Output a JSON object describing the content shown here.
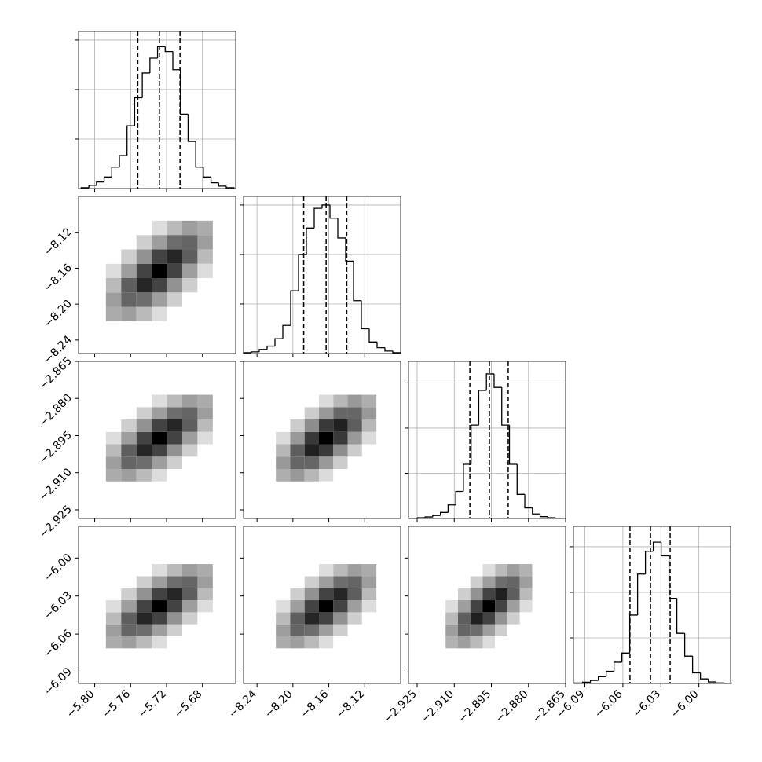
{
  "chart_data": {
    "type": "corner",
    "params": [
      {
        "lim": [
          -5.818,
          -5.643
        ],
        "ticks": [
          {
            "value": -5.8,
            "label": "−5.80"
          },
          {
            "value": -5.76,
            "label": "−5.76"
          },
          {
            "value": -5.72,
            "label": "−5.72"
          },
          {
            "value": -5.68,
            "label": "−5.68"
          }
        ],
        "bins": [
          -5.815,
          -5.8065,
          -5.798,
          -5.7895,
          -5.781,
          -5.7725,
          -5.764,
          -5.7555,
          -5.747,
          -5.7385,
          -5.73,
          -5.7215,
          -5.713,
          -5.7045,
          -5.696,
          -5.6875,
          -5.679,
          -5.6705,
          -5.662,
          -5.6535,
          -5.645
        ],
        "counts": [
          5,
          20,
          40,
          70,
          130,
          200,
          380,
          550,
          700,
          790,
          860,
          830,
          720,
          450,
          285,
          130,
          70,
          35,
          15,
          5
        ],
        "hist_ylim": [
          0,
          952
        ],
        "hist_yticks": [
          300,
          600,
          900
        ],
        "quantiles": [
          -5.752,
          -5.728,
          -5.705
        ],
        "grid_edges": [
          -5.7875,
          -5.7705,
          -5.7535,
          -5.7365,
          -5.7195,
          -5.7025,
          -5.6855,
          -5.6685
        ]
      },
      {
        "lim": [
          -8.255,
          -8.08
        ],
        "ticks": [
          {
            "value": -8.24,
            "label": "−8.24"
          },
          {
            "value": -8.2,
            "label": "−8.20"
          },
          {
            "value": -8.16,
            "label": "−8.16"
          },
          {
            "value": -8.12,
            "label": "−8.12"
          }
        ],
        "bins": [
          -8.255,
          -8.24625,
          -8.2375,
          -8.22875,
          -8.22,
          -8.21125,
          -8.2025,
          -8.19375,
          -8.185,
          -8.17625,
          -8.1675,
          -8.15875,
          -8.15,
          -8.14125,
          -8.1325,
          -8.12375,
          -8.115,
          -8.10625,
          -8.0975,
          -8.08875,
          -8.08
        ],
        "counts": [
          5,
          10,
          25,
          45,
          90,
          170,
          380,
          600,
          760,
          880,
          900,
          820,
          700,
          560,
          320,
          150,
          70,
          35,
          15,
          5
        ],
        "hist_ylim": [
          0,
          952
        ],
        "hist_yticks": [
          300,
          600,
          900
        ],
        "quantiles": [
          -8.188,
          -8.163,
          -8.14
        ],
        "grid_edges": [
          -8.219,
          -8.203,
          -8.187,
          -8.171,
          -8.155,
          -8.139,
          -8.123,
          -8.107
        ]
      },
      {
        "lim": [
          -2.9285,
          -2.865
        ],
        "ticks": [
          {
            "value": -2.925,
            "label": "−2.925"
          },
          {
            "value": -2.91,
            "label": "−2.910"
          },
          {
            "value": -2.895,
            "label": "−2.895"
          },
          {
            "value": -2.88,
            "label": "−2.880"
          },
          {
            "value": -2.865,
            "label": "−2.865"
          }
        ],
        "bins": [
          -2.928,
          -2.9249,
          -2.9218,
          -2.9187,
          -2.9156,
          -2.9125,
          -2.9094,
          -2.9063,
          -2.9032,
          -2.9001,
          -2.897,
          -2.8939,
          -2.8908,
          -2.8877,
          -2.8846,
          -2.8815,
          -2.8784,
          -2.8753,
          -2.8722,
          -2.8691,
          -2.866
        ],
        "counts": [
          2,
          5,
          10,
          20,
          40,
          90,
          180,
          360,
          620,
          850,
          960,
          870,
          620,
          360,
          160,
          70,
          30,
          12,
          5,
          2
        ],
        "hist_ylim": [
          0,
          1043
        ],
        "hist_yticks": [
          300,
          600,
          900
        ],
        "quantiles": [
          -2.9037,
          -2.8958,
          -2.8882
        ],
        "grid_edges": [
          -2.9135,
          -2.9085,
          -2.9035,
          -2.8985,
          -2.8935,
          -2.8885,
          -2.8835,
          -2.8785
        ]
      },
      {
        "lim": [
          -6.099,
          -5.975
        ],
        "ticks": [
          {
            "value": -6.09,
            "label": "−6.09"
          },
          {
            "value": -6.06,
            "label": "−6.06"
          },
          {
            "value": -6.03,
            "label": "−6.03"
          },
          {
            "value": -6.0,
            "label": "−6.00"
          }
        ],
        "bins": [
          -6.098,
          -6.0918,
          -6.0856,
          -6.0794,
          -6.0732,
          -6.067,
          -6.0608,
          -6.0546,
          -6.0484,
          -6.0422,
          -6.036,
          -6.0298,
          -6.0236,
          -6.0174,
          -6.0112,
          -6.005,
          -5.9988,
          -5.9926,
          -5.9864,
          -5.9802,
          -5.974
        ],
        "counts": [
          3,
          8,
          20,
          45,
          80,
          140,
          200,
          450,
          720,
          870,
          930,
          840,
          560,
          330,
          180,
          70,
          30,
          10,
          4,
          2
        ],
        "hist_ylim": [
          0,
          1034
        ],
        "hist_yticks": [
          300,
          600,
          900
        ],
        "quantiles": [
          -6.0544,
          -6.0382,
          -6.0227
        ],
        "grid_edges": [
          -6.0713,
          -6.0618,
          -6.0523,
          -6.0428,
          -6.0333,
          -6.0238,
          -6.0143,
          -6.0048
        ]
      }
    ],
    "density": [
      [
        [
          [
            6,
            8,
            4,
            1,
            0,
            0,
            0
          ],
          [
            8,
            20,
            18,
            8,
            2,
            0,
            0
          ],
          [
            4,
            22,
            40,
            30,
            10,
            2,
            0
          ],
          [
            1,
            8,
            30,
            55,
            30,
            8,
            1
          ],
          [
            0,
            2,
            10,
            30,
            40,
            22,
            4
          ],
          [
            0,
            0,
            2,
            8,
            18,
            20,
            8
          ],
          [
            0,
            0,
            0,
            1,
            4,
            8,
            6
          ]
        ]
      ],
      [
        [
          [
            6,
            8,
            4,
            1,
            0,
            0,
            0
          ],
          [
            8,
            20,
            18,
            8,
            2,
            0,
            0
          ],
          [
            4,
            22,
            40,
            30,
            10,
            2,
            0
          ],
          [
            1,
            8,
            30,
            55,
            30,
            8,
            1
          ],
          [
            0,
            2,
            10,
            30,
            40,
            22,
            4
          ],
          [
            0,
            0,
            2,
            8,
            18,
            20,
            8
          ],
          [
            0,
            0,
            0,
            1,
            4,
            8,
            6
          ]
        ],
        [
          [
            5,
            8,
            4,
            1,
            0,
            0,
            0
          ],
          [
            8,
            18,
            18,
            8,
            2,
            0,
            0
          ],
          [
            4,
            20,
            38,
            30,
            10,
            2,
            0
          ],
          [
            1,
            8,
            30,
            50,
            30,
            8,
            1
          ],
          [
            0,
            2,
            10,
            30,
            38,
            20,
            4
          ],
          [
            0,
            0,
            2,
            8,
            18,
            18,
            8
          ],
          [
            0,
            0,
            0,
            1,
            4,
            8,
            5
          ]
        ]
      ],
      [
        [
          [
            6,
            8,
            4,
            1,
            0,
            0,
            0
          ],
          [
            8,
            20,
            18,
            8,
            2,
            0,
            0
          ],
          [
            4,
            22,
            40,
            30,
            10,
            2,
            0
          ],
          [
            1,
            8,
            30,
            55,
            30,
            8,
            1
          ],
          [
            0,
            2,
            10,
            30,
            40,
            22,
            4
          ],
          [
            0,
            0,
            2,
            8,
            18,
            20,
            8
          ],
          [
            0,
            0,
            0,
            1,
            4,
            8,
            6
          ]
        ],
        [
          [
            6,
            8,
            4,
            1,
            0,
            0,
            0
          ],
          [
            8,
            20,
            18,
            8,
            2,
            0,
            0
          ],
          [
            4,
            22,
            40,
            30,
            10,
            2,
            0
          ],
          [
            1,
            8,
            30,
            55,
            30,
            8,
            1
          ],
          [
            0,
            2,
            10,
            30,
            40,
            22,
            4
          ],
          [
            0,
            0,
            2,
            8,
            18,
            20,
            8
          ],
          [
            0,
            0,
            0,
            1,
            4,
            8,
            6
          ]
        ],
        [
          [
            5,
            8,
            4,
            1,
            0,
            0,
            0
          ],
          [
            8,
            20,
            18,
            8,
            2,
            0,
            0
          ],
          [
            4,
            22,
            42,
            30,
            10,
            2,
            0
          ],
          [
            1,
            8,
            30,
            55,
            30,
            8,
            1
          ],
          [
            0,
            2,
            10,
            30,
            42,
            22,
            4
          ],
          [
            0,
            0,
            2,
            8,
            18,
            20,
            8
          ],
          [
            0,
            0,
            0,
            1,
            4,
            8,
            5
          ]
        ]
      ]
    ]
  }
}
